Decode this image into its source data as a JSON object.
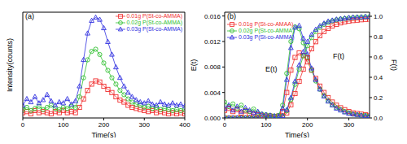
{
  "chart_data": [
    {
      "type": "line",
      "title": "(a)",
      "x_label": "Time(s)",
      "y_label": "Intensity(counts)",
      "x": [
        0,
        10,
        20,
        30,
        40,
        50,
        60,
        70,
        80,
        90,
        100,
        110,
        120,
        130,
        140,
        150,
        160,
        170,
        180,
        190,
        200,
        210,
        220,
        230,
        240,
        250,
        260,
        270,
        280,
        290,
        300,
        310,
        320,
        330,
        340,
        350,
        360,
        370,
        380,
        390,
        400
      ],
      "xlim": [
        0,
        400
      ],
      "xticks": [
        0,
        100,
        200,
        300,
        400
      ],
      "ylim": [
        0,
        100
      ],
      "tick_labels": "x",
      "legend": "upper right",
      "series": [
        {
          "name": "0.01g P(St-co-AMMA)",
          "color": "#f03030",
          "marker": "square",
          "line_style": "solid",
          "values": [
            5,
            6,
            4,
            7,
            5,
            6,
            5,
            4,
            6,
            5,
            7,
            5,
            6,
            5,
            10,
            18,
            26,
            32,
            35,
            34,
            30,
            27,
            24,
            20,
            17,
            15,
            12,
            10,
            9,
            8,
            7,
            6,
            7,
            5,
            6,
            5,
            4,
            5,
            4,
            5,
            4
          ]
        },
        {
          "name": "0.02g P(St-co-AMMA)",
          "color": "#30c030",
          "marker": "circle",
          "line_style": "solid",
          "values": [
            8,
            10,
            7,
            9,
            11,
            8,
            10,
            12,
            9,
            8,
            10,
            9,
            11,
            10,
            20,
            38,
            55,
            63,
            65,
            60,
            52,
            45,
            38,
            32,
            26,
            22,
            18,
            15,
            13,
            12,
            10,
            11,
            9,
            10,
            8,
            9,
            8,
            7,
            8,
            7,
            8
          ]
        },
        {
          "name": "0.03g P(St-co-AMMA)",
          "color": "#3030e0",
          "marker": "triangle",
          "line_style": "solid",
          "values": [
            12,
            18,
            15,
            20,
            14,
            17,
            22,
            16,
            12,
            15,
            14,
            18,
            13,
            16,
            30,
            55,
            80,
            92,
            95,
            93,
            85,
            72,
            60,
            48,
            38,
            30,
            24,
            20,
            17,
            15,
            14,
            16,
            13,
            12,
            15,
            13,
            12,
            14,
            12,
            13,
            11
          ]
        }
      ]
    },
    {
      "type": "line",
      "title": "(b)",
      "x_label": "Time(s)",
      "y_label": "E(t)",
      "y2_label": "F(t)",
      "x": [
        0,
        10,
        20,
        30,
        40,
        50,
        60,
        70,
        80,
        90,
        100,
        110,
        120,
        130,
        140,
        150,
        160,
        170,
        180,
        190,
        200,
        210,
        220,
        230,
        240,
        250,
        260,
        270,
        280,
        290,
        300,
        310,
        320,
        330,
        340,
        350
      ],
      "xlim": [
        0,
        350
      ],
      "xticks": [
        0,
        100,
        200,
        300
      ],
      "ylim": [
        0,
        0.0166
      ],
      "yticks": [
        {
          "value": 0,
          "label": "0.000"
        },
        0.004,
        0.008,
        0.012,
        0.016
      ],
      "y2lim": [
        0,
        1.04
      ],
      "y2ticks": [
        {
          "value": 0,
          "label": "0.0"
        },
        0.2,
        0.4,
        0.6,
        0.8,
        {
          "value": 1,
          "label": "1.0"
        }
      ],
      "legend": "upper left",
      "annotations": [
        {
          "text": "E(t)"
        },
        {
          "text": "F(t)"
        }
      ],
      "series": [
        {
          "name": "0.01g P(St-co-AMAA)",
          "color": "#f03030",
          "marker": "square",
          "line_style": "solid",
          "values": [
            0.0012,
            0.0015,
            0.001,
            0.0013,
            0.0008,
            0.0011,
            0.0007,
            0.0006,
            0.0005,
            0.0004,
            0.0003,
            0.0003,
            0.0002,
            0.0003,
            0.001,
            0.004,
            0.0075,
            0.0095,
            0.0102,
            0.0098,
            0.0088,
            0.0075,
            0.0062,
            0.005,
            0.004,
            0.0032,
            0.0025,
            0.002,
            0.0016,
            0.0013,
            0.001,
            0.0008,
            0.0007,
            0.0006,
            0.0005,
            0.0004
          ]
        },
        {
          "name": "0.02g P(St-co-AMMA)",
          "color": "#30c030",
          "marker": "circle",
          "line_style": "solid",
          "values": [
            0.0025,
            0.0018,
            0.0022,
            0.0015,
            0.002,
            0.0012,
            0.001,
            0.0014,
            0.0008,
            0.0006,
            0.0005,
            0.0004,
            0.0003,
            0.0004,
            0.002,
            0.007,
            0.012,
            0.0143,
            0.014,
            0.0118,
            0.0095,
            0.0075,
            0.0058,
            0.0045,
            0.0035,
            0.0027,
            0.0021,
            0.0016,
            0.0013,
            0.001,
            0.0008,
            0.0006,
            0.0005,
            0.0004,
            0.0004,
            0.0003
          ]
        },
        {
          "name": "0.03g P(St-co-AMMA)",
          "color": "#3030e0",
          "marker": "triangle",
          "line_style": "solid",
          "values": [
            0.0015,
            0.002,
            0.0012,
            0.0018,
            0.001,
            0.0016,
            0.0012,
            0.0008,
            0.001,
            0.0006,
            0.0005,
            0.0004,
            0.0003,
            0.0003,
            0.0015,
            0.006,
            0.011,
            0.0142,
            0.0145,
            0.0125,
            0.01,
            0.0078,
            0.006,
            0.0045,
            0.0034,
            0.0026,
            0.002,
            0.0015,
            0.0012,
            0.0009,
            0.0007,
            0.0006,
            0.0005,
            0.0004,
            0.0003,
            0.0003
          ]
        },
        {
          "color": "#f03030",
          "marker": "square",
          "line_style": "solid",
          "axis": "y2",
          "values": [
            0,
            0,
            0,
            0,
            0,
            0,
            0,
            0,
            0,
            0,
            0,
            0,
            0,
            0,
            0.01,
            0.05,
            0.13,
            0.24,
            0.36,
            0.48,
            0.59,
            0.68,
            0.75,
            0.81,
            0.85,
            0.88,
            0.905,
            0.92,
            0.935,
            0.945,
            0.952,
            0.958,
            0.962,
            0.966,
            0.97,
            0.972
          ]
        },
        {
          "color": "#30c030",
          "marker": "circle",
          "line_style": "solid",
          "axis": "y2",
          "values": [
            0,
            0,
            0,
            0,
            0,
            0,
            0,
            0,
            0,
            0,
            0,
            0,
            0,
            0,
            0.02,
            0.07,
            0.18,
            0.33,
            0.48,
            0.61,
            0.71,
            0.79,
            0.85,
            0.89,
            0.92,
            0.94,
            0.955,
            0.965,
            0.972,
            0.978,
            0.983,
            0.987,
            0.99,
            0.992,
            0.994,
            0.995
          ]
        },
        {
          "color": "#3030e0",
          "marker": "triangle",
          "line_style": "solid",
          "axis": "y2",
          "values": [
            0,
            0,
            0,
            0,
            0,
            0,
            0,
            0,
            0,
            0,
            0,
            0,
            0,
            0,
            0.02,
            0.08,
            0.2,
            0.36,
            0.52,
            0.65,
            0.75,
            0.82,
            0.87,
            0.905,
            0.93,
            0.95,
            0.96,
            0.97,
            0.975,
            0.98,
            0.985,
            0.99,
            0.99,
            0.992,
            0.995,
            0.995
          ]
        }
      ]
    }
  ]
}
